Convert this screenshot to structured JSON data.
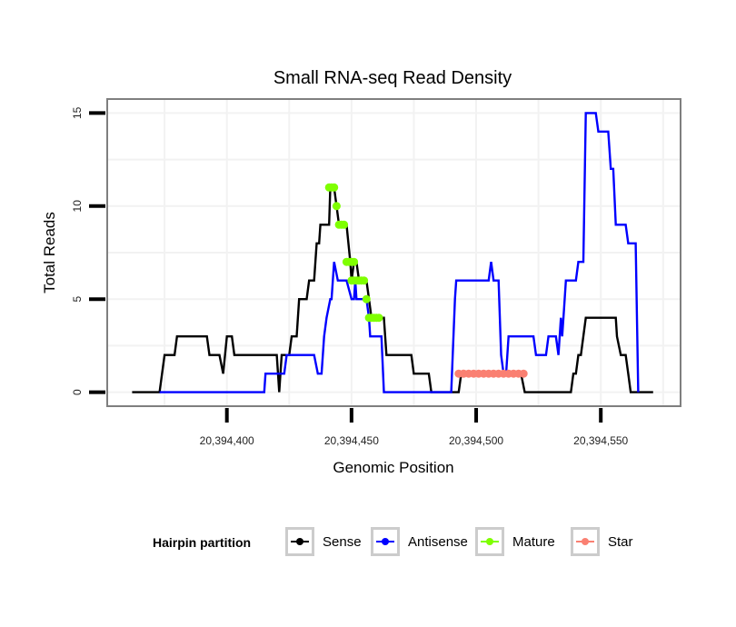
{
  "chart_data": {
    "type": "line",
    "title": "Small RNA-seq Read Density",
    "xlabel": "Genomic Position",
    "ylabel": "Total Reads",
    "xlim": [
      20394352,
      20394582
    ],
    "ylim": [
      -0.75,
      15.75
    ],
    "x_ticks": [
      20394400,
      20394450,
      20394500,
      20394550
    ],
    "x_tick_labels": [
      "20,394,400",
      "20,394,450",
      "20,394,500",
      "20,394,550"
    ],
    "y_ticks": [
      0,
      5,
      10,
      15
    ],
    "y_tick_labels": [
      "0",
      "5",
      "10",
      "15"
    ],
    "grid": true,
    "legend_position": "bottom",
    "legend_title": "Hairpin partition",
    "series": [
      {
        "name": "Sense",
        "color": "#000000",
        "style": "line",
        "points": [
          [
            20394362,
            0
          ],
          [
            20394373,
            0
          ],
          [
            20394375,
            2
          ],
          [
            20394379,
            2
          ],
          [
            20394380,
            3
          ],
          [
            20394392,
            3
          ],
          [
            20394393,
            2
          ],
          [
            20394397,
            2
          ],
          [
            20394398.5,
            1
          ],
          [
            20394400,
            3
          ],
          [
            20394402,
            3
          ],
          [
            20394403,
            2
          ],
          [
            20394420,
            2
          ],
          [
            20394421,
            0
          ],
          [
            20394422,
            2
          ],
          [
            20394425,
            2
          ],
          [
            20394426,
            3
          ],
          [
            20394428,
            3
          ],
          [
            20394429,
            5
          ],
          [
            20394432,
            5
          ],
          [
            20394433,
            6
          ],
          [
            20394435,
            6
          ],
          [
            20394436,
            8
          ],
          [
            20394437,
            8
          ],
          [
            20394437.5,
            9
          ],
          [
            20394441,
            9
          ],
          [
            20394441.5,
            11
          ],
          [
            20394443,
            11
          ],
          [
            20394445,
            9
          ],
          [
            20394448,
            9
          ],
          [
            20394449.5,
            7
          ],
          [
            20394450,
            6
          ],
          [
            20394451,
            7
          ],
          [
            20394452,
            7
          ],
          [
            20394453,
            6
          ],
          [
            20394456,
            6
          ],
          [
            20394457,
            5
          ],
          [
            20394458,
            4
          ],
          [
            20394463,
            4
          ],
          [
            20394464,
            2
          ],
          [
            20394474,
            2
          ],
          [
            20394475,
            1
          ],
          [
            20394481,
            1
          ],
          [
            20394482,
            0
          ],
          [
            20394493,
            0
          ],
          [
            20394494,
            1
          ],
          [
            20394518,
            1
          ],
          [
            20394519.5,
            0
          ],
          [
            20394538,
            0
          ],
          [
            20394539,
            1
          ],
          [
            20394540,
            1
          ],
          [
            20394541,
            2
          ],
          [
            20394542,
            2
          ],
          [
            20394544,
            4
          ],
          [
            20394556,
            4
          ],
          [
            20394556.5,
            3
          ],
          [
            20394558,
            2
          ],
          [
            20394560,
            2
          ],
          [
            20394561,
            1
          ],
          [
            20394562,
            0
          ],
          [
            20394571,
            0
          ]
        ]
      },
      {
        "name": "Antisense",
        "color": "#0000ff",
        "style": "line",
        "points": [
          [
            20394373,
            0
          ],
          [
            20394415,
            0
          ],
          [
            20394415.5,
            1
          ],
          [
            20394423,
            1
          ],
          [
            20394424,
            2
          ],
          [
            20394435,
            2
          ],
          [
            20394436.5,
            1
          ],
          [
            20394438,
            1
          ],
          [
            20394439,
            3
          ],
          [
            20394440,
            4
          ],
          [
            20394441.5,
            5
          ],
          [
            20394442,
            5
          ],
          [
            20394443,
            7
          ],
          [
            20394444.5,
            6
          ],
          [
            20394448,
            6
          ],
          [
            20394450,
            5
          ],
          [
            20394451,
            5
          ],
          [
            20394451.5,
            6
          ],
          [
            20394452,
            5
          ],
          [
            20394456,
            5
          ],
          [
            20394457,
            4
          ],
          [
            20394457.5,
            3
          ],
          [
            20394458,
            3
          ],
          [
            20394462,
            3
          ],
          [
            20394463,
            0
          ],
          [
            20394490,
            0
          ],
          [
            20394491.5,
            5
          ],
          [
            20394492,
            6
          ],
          [
            20394505,
            6
          ],
          [
            20394506,
            7
          ],
          [
            20394507,
            6
          ],
          [
            20394509,
            6
          ],
          [
            20394510,
            2
          ],
          [
            20394511,
            1
          ],
          [
            20394512,
            1
          ],
          [
            20394513,
            3
          ],
          [
            20394523,
            3
          ],
          [
            20394524,
            2
          ],
          [
            20394528,
            2
          ],
          [
            20394529,
            3
          ],
          [
            20394532,
            3
          ],
          [
            20394533,
            2
          ],
          [
            20394534,
            4
          ],
          [
            20394534.5,
            3
          ],
          [
            20394535,
            4
          ],
          [
            20394536,
            6
          ],
          [
            20394540,
            6
          ],
          [
            20394541,
            7
          ],
          [
            20394543,
            7
          ],
          [
            20394544,
            15
          ],
          [
            20394548,
            15
          ],
          [
            20394549,
            14
          ],
          [
            20394553,
            14
          ],
          [
            20394554,
            12
          ],
          [
            20394555,
            12
          ],
          [
            20394556,
            9
          ],
          [
            20394560,
            9
          ],
          [
            20394561,
            8
          ],
          [
            20394564,
            8
          ],
          [
            20394565,
            0
          ],
          [
            20394565,
            0
          ]
        ]
      },
      {
        "name": "Mature",
        "color": "#7fff00",
        "style": "points",
        "points": [
          [
            20394441,
            11
          ],
          [
            20394442,
            11
          ],
          [
            20394443,
            11
          ],
          [
            20394444,
            10
          ],
          [
            20394445,
            9
          ],
          [
            20394446,
            9
          ],
          [
            20394447,
            9
          ],
          [
            20394448,
            7
          ],
          [
            20394449,
            7
          ],
          [
            20394450,
            7
          ],
          [
            20394451,
            7
          ],
          [
            20394450,
            6
          ],
          [
            20394451,
            6
          ],
          [
            20394452,
            6
          ],
          [
            20394453,
            6
          ],
          [
            20394454,
            6
          ],
          [
            20394455,
            6
          ],
          [
            20394456,
            5
          ],
          [
            20394457,
            4
          ],
          [
            20394458,
            4
          ],
          [
            20394459,
            4
          ],
          [
            20394460,
            4
          ],
          [
            20394461,
            4
          ]
        ]
      },
      {
        "name": "Star",
        "color": "#fa8072",
        "style": "points",
        "points": [
          [
            20394493,
            1
          ],
          [
            20394495,
            1
          ],
          [
            20394497,
            1
          ],
          [
            20394499,
            1
          ],
          [
            20394501,
            1
          ],
          [
            20394503,
            1
          ],
          [
            20394505,
            1
          ],
          [
            20394507,
            1
          ],
          [
            20394509,
            1
          ],
          [
            20394511,
            1
          ],
          [
            20394513,
            1
          ],
          [
            20394515,
            1
          ],
          [
            20394517,
            1
          ],
          [
            20394519,
            1
          ]
        ]
      }
    ]
  },
  "legend": {
    "title": "Hairpin partition",
    "items": [
      {
        "label": "Sense",
        "color": "#000000"
      },
      {
        "label": "Antisense",
        "color": "#0000ff"
      },
      {
        "label": "Mature",
        "color": "#7fff00"
      },
      {
        "label": "Star",
        "color": "#fa8072"
      }
    ]
  }
}
